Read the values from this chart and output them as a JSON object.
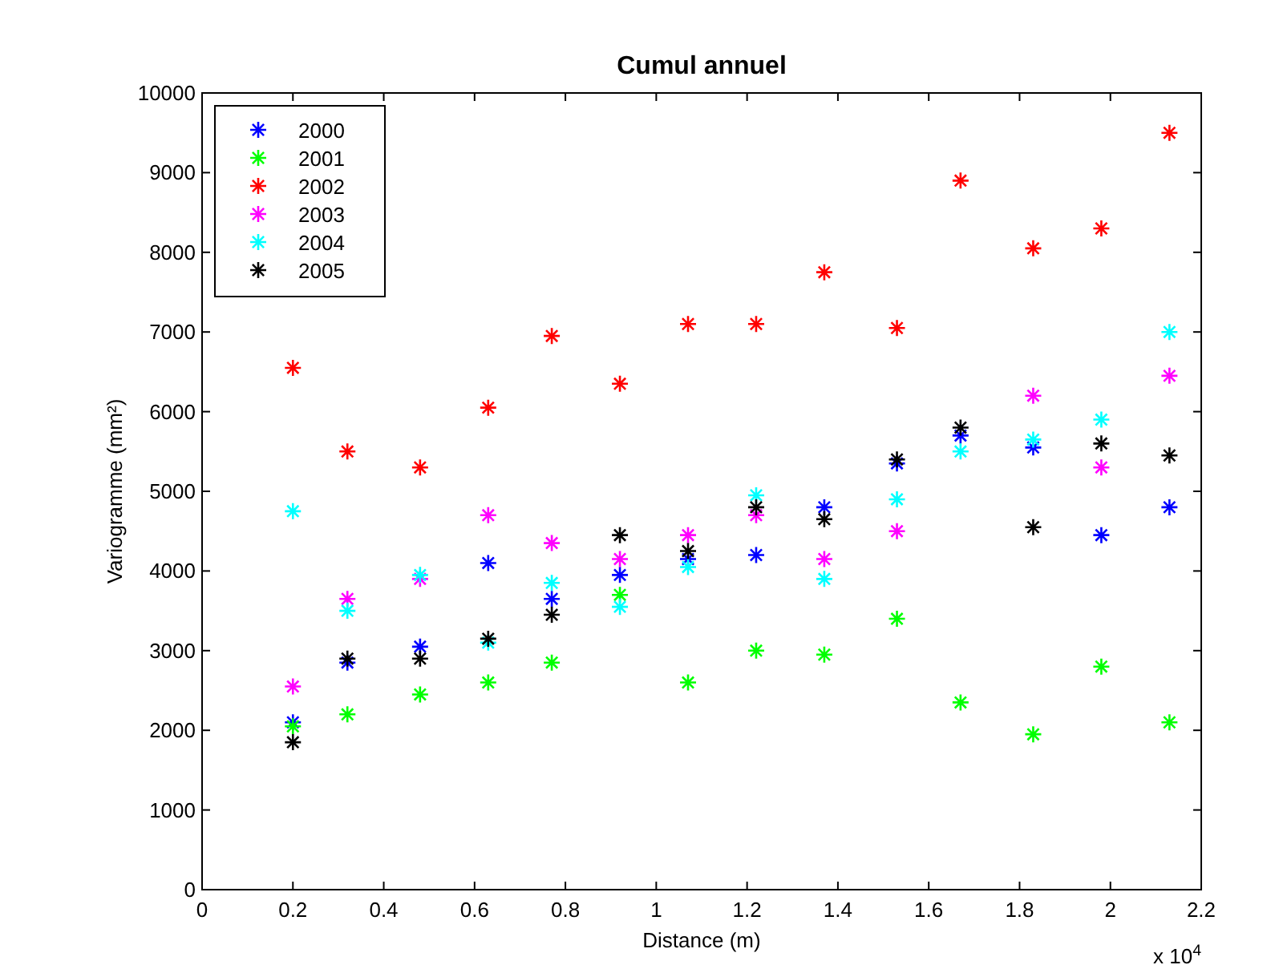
{
  "chart_data": {
    "type": "scatter",
    "title": "Cumul annuel",
    "xlabel": "Distance (m)",
    "ylabel": "Variogramme (mm²)",
    "annotations": [
      "x 10$^{4}$"
    ],
    "x": [
      0.2,
      0.32,
      0.48,
      0.63,
      0.77,
      0.92,
      1.07,
      1.22,
      1.37,
      1.53,
      1.67,
      1.83,
      1.98,
      2.13
    ],
    "series": [
      {
        "name": "2000",
        "color": "#0000ff",
        "values": [
          2100,
          2850,
          3050,
          4100,
          3650,
          3950,
          4150,
          4200,
          4800,
          5350,
          5700,
          5550,
          4450,
          4800
        ]
      },
      {
        "name": "2001",
        "color": "#00ff00",
        "values": [
          2050,
          2200,
          2450,
          2600,
          2850,
          3700,
          2600,
          3000,
          2950,
          3400,
          2350,
          1950,
          2800,
          2100
        ]
      },
      {
        "name": "2002",
        "color": "#ff0000",
        "values": [
          6550,
          5500,
          5300,
          6050,
          6950,
          6350,
          7100,
          7100,
          7750,
          7050,
          8900,
          8050,
          8300,
          9500
        ]
      },
      {
        "name": "2003",
        "color": "#ff00ff",
        "values": [
          2550,
          3650,
          3900,
          4700,
          4350,
          4150,
          4450,
          4700,
          4150,
          4500,
          null,
          6200,
          5300,
          6450
        ]
      },
      {
        "name": "2004",
        "color": "#00ffff",
        "values": [
          4750,
          3500,
          3950,
          3100,
          3850,
          3550,
          4050,
          4950,
          3900,
          4900,
          5500,
          5650,
          5900,
          7000
        ]
      },
      {
        "name": "2005",
        "color": "#000000",
        "values": [
          1850,
          2900,
          2900,
          3150,
          3450,
          4450,
          4250,
          4800,
          4650,
          5400,
          5800,
          4550,
          5600,
          5450
        ]
      }
    ],
    "xlim": [
      0,
      2.2
    ],
    "xticks": [
      0,
      0.2,
      0.4,
      0.6,
      0.8,
      1,
      1.2,
      1.4,
      1.6,
      1.8,
      2,
      2.2
    ],
    "ylim": [
      0,
      10000
    ],
    "yticks": [
      0,
      1000,
      2000,
      3000,
      4000,
      5000,
      6000,
      7000,
      8000,
      9000,
      10000
    ],
    "legend": "top left",
    "marker": "cross",
    "grid": false
  }
}
